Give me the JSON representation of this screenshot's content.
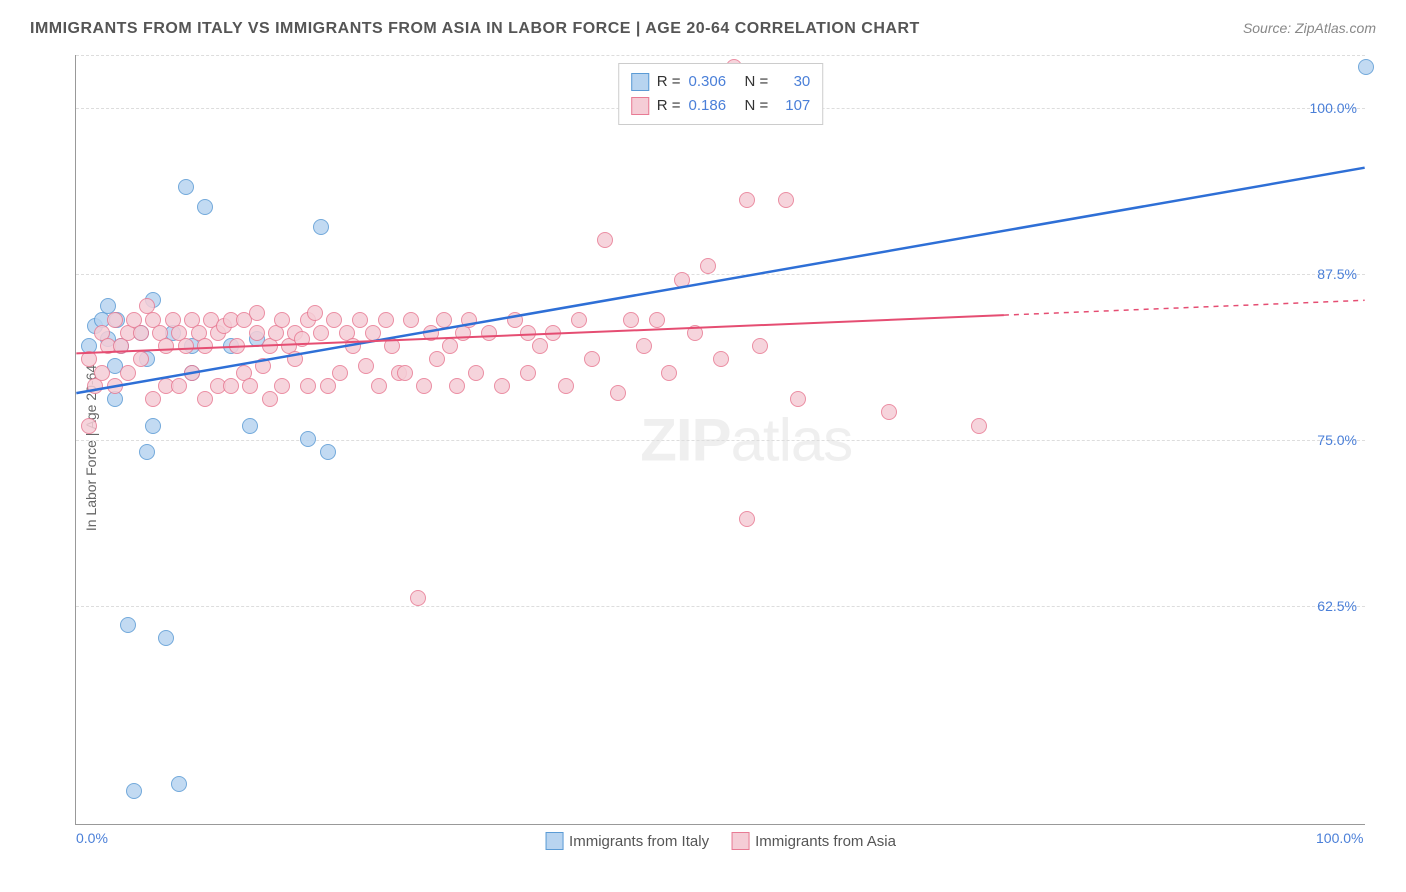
{
  "title": "IMMIGRANTS FROM ITALY VS IMMIGRANTS FROM ASIA IN LABOR FORCE | AGE 20-64 CORRELATION CHART",
  "source": "Source: ZipAtlas.com",
  "ylabel": "In Labor Force | Age 20-64",
  "watermark_bold": "ZIP",
  "watermark_rest": "atlas",
  "chart": {
    "type": "scatter",
    "xlim": [
      0,
      100
    ],
    "ylim": [
      46,
      104
    ],
    "grid_color": "#dddddd",
    "background_color": "#ffffff",
    "axis_color": "#999999",
    "yticks": [
      {
        "v": 62.5,
        "label": "62.5%"
      },
      {
        "v": 75.0,
        "label": "75.0%"
      },
      {
        "v": 87.5,
        "label": "87.5%"
      },
      {
        "v": 100.0,
        "label": "100.0%"
      }
    ],
    "xticks": [
      {
        "v": 0,
        "label": "0.0%"
      },
      {
        "v": 100,
        "label": "100.0%"
      }
    ],
    "gridlines_y": [
      62.5,
      75.0,
      87.5,
      100.0,
      104
    ]
  },
  "series": [
    {
      "name": "Immigrants from Italy",
      "label": "Immigrants from Italy",
      "color_fill": "#b8d4f0",
      "color_stroke": "#5b9bd5",
      "r_value": "0.306",
      "n_value": "30",
      "trend": {
        "x1": 0,
        "y1": 78.5,
        "x2": 100,
        "y2": 95.5,
        "solid_until": 100,
        "color": "#2e6fd6",
        "width": 2.5
      },
      "points": [
        {
          "x": 1,
          "y": 82
        },
        {
          "x": 1.5,
          "y": 83.5
        },
        {
          "x": 2,
          "y": 84
        },
        {
          "x": 2.5,
          "y": 82.5
        },
        {
          "x": 2.5,
          "y": 85
        },
        {
          "x": 3,
          "y": 80.5
        },
        {
          "x": 3,
          "y": 78
        },
        {
          "x": 3.2,
          "y": 84
        },
        {
          "x": 3.5,
          "y": 82
        },
        {
          "x": 4,
          "y": 61
        },
        {
          "x": 4.5,
          "y": 48.5
        },
        {
          "x": 5,
          "y": 83
        },
        {
          "x": 5.5,
          "y": 81
        },
        {
          "x": 5.5,
          "y": 74
        },
        {
          "x": 6,
          "y": 85.5
        },
        {
          "x": 6,
          "y": 76
        },
        {
          "x": 7,
          "y": 60
        },
        {
          "x": 7.5,
          "y": 83
        },
        {
          "x": 8,
          "y": 49
        },
        {
          "x": 8.5,
          "y": 94
        },
        {
          "x": 9,
          "y": 82
        },
        {
          "x": 9,
          "y": 80
        },
        {
          "x": 10,
          "y": 92.5
        },
        {
          "x": 12,
          "y": 82
        },
        {
          "x": 13.5,
          "y": 76
        },
        {
          "x": 14,
          "y": 82.5
        },
        {
          "x": 18,
          "y": 75
        },
        {
          "x": 19,
          "y": 91
        },
        {
          "x": 19.5,
          "y": 74
        },
        {
          "x": 100,
          "y": 103
        }
      ]
    },
    {
      "name": "Immigrants from Asia",
      "label": "Immigrants from Asia",
      "color_fill": "#f5cdd6",
      "color_stroke": "#e87b94",
      "r_value": "0.186",
      "n_value": "107",
      "trend": {
        "x1": 0,
        "y1": 81.5,
        "x2": 100,
        "y2": 85.5,
        "solid_until": 72,
        "color": "#e54d72",
        "width": 2
      },
      "points": [
        {
          "x": 1,
          "y": 81
        },
        {
          "x": 1,
          "y": 76
        },
        {
          "x": 1.5,
          "y": 79
        },
        {
          "x": 2,
          "y": 80
        },
        {
          "x": 2,
          "y": 83
        },
        {
          "x": 2.5,
          "y": 82
        },
        {
          "x": 3,
          "y": 84
        },
        {
          "x": 3,
          "y": 79
        },
        {
          "x": 3.5,
          "y": 82
        },
        {
          "x": 4,
          "y": 83
        },
        {
          "x": 4,
          "y": 80
        },
        {
          "x": 4.5,
          "y": 84
        },
        {
          "x": 5,
          "y": 83
        },
        {
          "x": 5,
          "y": 81
        },
        {
          "x": 5.5,
          "y": 85
        },
        {
          "x": 6,
          "y": 84
        },
        {
          "x": 6,
          "y": 78
        },
        {
          "x": 6.5,
          "y": 83
        },
        {
          "x": 7,
          "y": 82
        },
        {
          "x": 7,
          "y": 79
        },
        {
          "x": 7.5,
          "y": 84
        },
        {
          "x": 8,
          "y": 83
        },
        {
          "x": 8,
          "y": 79
        },
        {
          "x": 8.5,
          "y": 82
        },
        {
          "x": 9,
          "y": 84
        },
        {
          "x": 9,
          "y": 80
        },
        {
          "x": 9.5,
          "y": 83
        },
        {
          "x": 10,
          "y": 82
        },
        {
          "x": 10,
          "y": 78
        },
        {
          "x": 10.5,
          "y": 84
        },
        {
          "x": 11,
          "y": 83
        },
        {
          "x": 11,
          "y": 79
        },
        {
          "x": 11.5,
          "y": 83.5
        },
        {
          "x": 12,
          "y": 84
        },
        {
          "x": 12,
          "y": 79
        },
        {
          "x": 12.5,
          "y": 82
        },
        {
          "x": 13,
          "y": 84
        },
        {
          "x": 13,
          "y": 80
        },
        {
          "x": 13.5,
          "y": 79
        },
        {
          "x": 14,
          "y": 83
        },
        {
          "x": 14,
          "y": 84.5
        },
        {
          "x": 14.5,
          "y": 80.5
        },
        {
          "x": 15,
          "y": 82
        },
        {
          "x": 15,
          "y": 78
        },
        {
          "x": 15.5,
          "y": 83
        },
        {
          "x": 16,
          "y": 84
        },
        {
          "x": 16,
          "y": 79
        },
        {
          "x": 16.5,
          "y": 82
        },
        {
          "x": 17,
          "y": 83
        },
        {
          "x": 17,
          "y": 81
        },
        {
          "x": 17.5,
          "y": 82.5
        },
        {
          "x": 18,
          "y": 84
        },
        {
          "x": 18,
          "y": 79
        },
        {
          "x": 18.5,
          "y": 84.5
        },
        {
          "x": 19,
          "y": 83
        },
        {
          "x": 19.5,
          "y": 79
        },
        {
          "x": 20,
          "y": 84
        },
        {
          "x": 20.5,
          "y": 80
        },
        {
          "x": 21,
          "y": 83
        },
        {
          "x": 21.5,
          "y": 82
        },
        {
          "x": 22,
          "y": 84
        },
        {
          "x": 22.5,
          "y": 80.5
        },
        {
          "x": 23,
          "y": 83
        },
        {
          "x": 23.5,
          "y": 79
        },
        {
          "x": 24,
          "y": 84
        },
        {
          "x": 24.5,
          "y": 82
        },
        {
          "x": 25,
          "y": 80
        },
        {
          "x": 25.5,
          "y": 80
        },
        {
          "x": 26,
          "y": 84
        },
        {
          "x": 26.5,
          "y": 63
        },
        {
          "x": 27,
          "y": 79
        },
        {
          "x": 27.5,
          "y": 83
        },
        {
          "x": 28,
          "y": 81
        },
        {
          "x": 28.5,
          "y": 84
        },
        {
          "x": 29,
          "y": 82
        },
        {
          "x": 29.5,
          "y": 79
        },
        {
          "x": 30,
          "y": 83
        },
        {
          "x": 30.5,
          "y": 84
        },
        {
          "x": 31,
          "y": 80
        },
        {
          "x": 32,
          "y": 83
        },
        {
          "x": 33,
          "y": 79
        },
        {
          "x": 34,
          "y": 84
        },
        {
          "x": 35,
          "y": 80
        },
        {
          "x": 35,
          "y": 83
        },
        {
          "x": 36,
          "y": 82
        },
        {
          "x": 37,
          "y": 83
        },
        {
          "x": 38,
          "y": 79
        },
        {
          "x": 39,
          "y": 84
        },
        {
          "x": 40,
          "y": 81
        },
        {
          "x": 41,
          "y": 90
        },
        {
          "x": 42,
          "y": 78.5
        },
        {
          "x": 43,
          "y": 84
        },
        {
          "x": 44,
          "y": 82
        },
        {
          "x": 45,
          "y": 84
        },
        {
          "x": 46,
          "y": 80
        },
        {
          "x": 47,
          "y": 87
        },
        {
          "x": 48,
          "y": 83
        },
        {
          "x": 49,
          "y": 88
        },
        {
          "x": 50,
          "y": 81
        },
        {
          "x": 52,
          "y": 93
        },
        {
          "x": 53,
          "y": 82
        },
        {
          "x": 55,
          "y": 93
        },
        {
          "x": 56,
          "y": 78
        },
        {
          "x": 51,
          "y": 103
        },
        {
          "x": 52,
          "y": 69
        },
        {
          "x": 63,
          "y": 77
        },
        {
          "x": 70,
          "y": 76
        }
      ]
    }
  ],
  "legend_top": {
    "r_label": "R =",
    "n_label": "N ="
  },
  "legend_colors": {
    "text_black": "#333333",
    "text_blue": "#4a7fd8"
  }
}
